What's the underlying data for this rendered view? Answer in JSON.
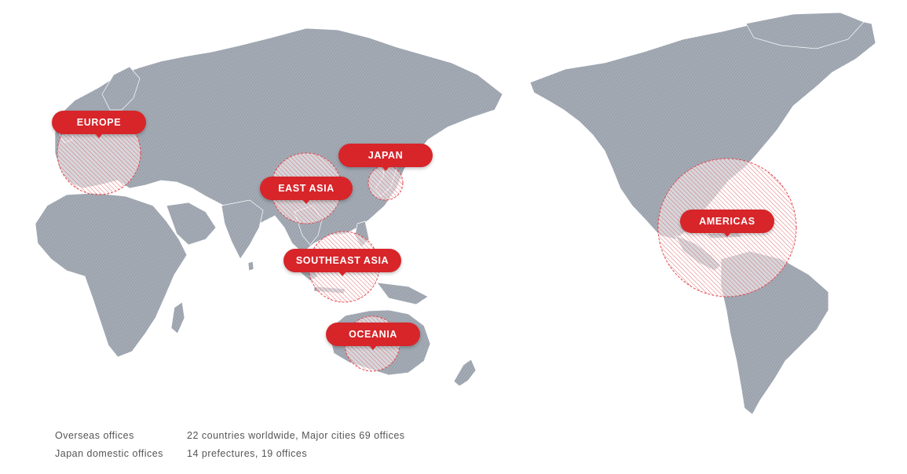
{
  "regions": [
    {
      "id": "europe",
      "label": "EUROPE"
    },
    {
      "id": "japan",
      "label": "JAPAN"
    },
    {
      "id": "east-asia",
      "label": "EAST ASIA"
    },
    {
      "id": "southeast-asia",
      "label": "SOUTHEAST ASIA"
    },
    {
      "id": "oceania",
      "label": "OCEANIA"
    },
    {
      "id": "americas",
      "label": "AMERICAS"
    }
  ],
  "stats": {
    "overseas_label": "Overseas offices",
    "overseas_value": "22 countries worldwide, Major cities 69 offices",
    "domestic_label": "Japan domestic offices",
    "domestic_value": "14 prefectures, 19 offices"
  },
  "colors": {
    "land": "#a2a9b3",
    "accent": "#d7252a"
  }
}
